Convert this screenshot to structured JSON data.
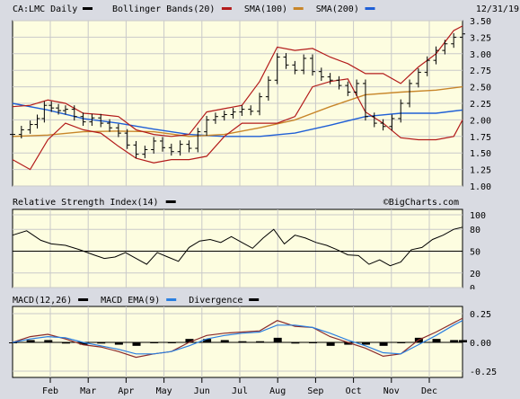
{
  "colors": {
    "background": "#d9dbe2",
    "plot_bg": "#fdfde0",
    "price": "#000000",
    "bollinger": "#b31b1b",
    "sma100": "#c8862a",
    "sma200": "#1f5fd6",
    "rsi": "#000000",
    "macd": "#000000",
    "macd_ema": "#2a7fe0",
    "divergence": "#000000",
    "signal": "#8b2b2b",
    "grid": "#c9c9c9"
  },
  "chart_data": [
    {
      "type": "line",
      "panel": "price",
      "header": {
        "symbol": "CA:LMC Daily",
        "date": "12/31/19",
        "legend": [
          {
            "label": "Bollinger Bands(20)",
            "color": "#b31b1b"
          },
          {
            "label": "SMA(100)",
            "color": "#c8862a"
          },
          {
            "label": "SMA(200)",
            "color": "#1f5fd6"
          }
        ]
      },
      "x_labels": [
        "Feb",
        "Mar",
        "Apr",
        "May",
        "Jun",
        "Jul",
        "Aug",
        "Sep",
        "Oct",
        "Nov",
        "Dec"
      ],
      "y_ticks": [
        "3.50",
        "3.25",
        "3.00",
        "2.75",
        "2.50",
        "2.25",
        "2.00",
        "1.75",
        "1.50",
        "1.25",
        "1.00"
      ],
      "ylim": [
        1.0,
        3.5
      ],
      "grid": true,
      "watermark": "©BigCharts.com",
      "series": [
        {
          "name": "CA:LMC Daily",
          "style": "ohlc",
          "x": [
            0,
            5,
            10,
            14,
            18,
            22,
            26,
            30,
            35,
            40,
            45,
            50,
            55,
            60,
            65,
            70,
            75,
            80,
            85,
            90,
            95,
            100,
            105,
            110,
            115,
            120,
            125,
            130,
            135,
            140,
            145,
            150,
            155,
            160,
            165,
            170,
            175,
            180,
            185,
            190,
            195,
            200,
            205,
            210,
            215,
            220,
            225,
            230,
            235,
            240,
            245,
            250,
            255
          ],
          "values": [
            1.78,
            1.85,
            1.93,
            2.02,
            2.22,
            2.18,
            2.14,
            2.16,
            2.05,
            1.97,
            2.03,
            1.95,
            1.88,
            1.8,
            1.62,
            1.48,
            1.55,
            1.68,
            1.58,
            1.52,
            1.63,
            1.57,
            1.82,
            2.0,
            2.05,
            2.08,
            2.12,
            2.16,
            2.13,
            2.35,
            2.6,
            2.95,
            2.83,
            2.75,
            2.93,
            2.73,
            2.65,
            2.6,
            2.52,
            2.42,
            2.55,
            2.05,
            1.95,
            1.9,
            2.02,
            2.25,
            2.55,
            2.72,
            2.9,
            3.05,
            3.15,
            3.25,
            3.3
          ]
        },
        {
          "name": "Bollinger Bands(20) upper",
          "x": [
            0,
            10,
            20,
            30,
            40,
            50,
            60,
            70,
            80,
            90,
            100,
            110,
            120,
            130,
            140,
            150,
            160,
            170,
            180,
            190,
            200,
            210,
            220,
            230,
            240,
            250,
            255
          ],
          "values": [
            2.2,
            2.22,
            2.3,
            2.25,
            2.1,
            2.08,
            2.05,
            1.85,
            1.78,
            1.75,
            1.78,
            2.12,
            2.17,
            2.22,
            2.58,
            3.1,
            3.05,
            3.08,
            2.95,
            2.85,
            2.7,
            2.7,
            2.55,
            2.8,
            3.0,
            3.35,
            3.42
          ]
        },
        {
          "name": "Bollinger Bands(20) lower",
          "x": [
            0,
            10,
            20,
            30,
            40,
            50,
            60,
            70,
            80,
            90,
            100,
            110,
            120,
            130,
            140,
            150,
            160,
            170,
            180,
            190,
            200,
            210,
            220,
            230,
            240,
            250,
            255
          ],
          "values": [
            1.4,
            1.25,
            1.7,
            1.95,
            1.85,
            1.8,
            1.6,
            1.42,
            1.35,
            1.4,
            1.4,
            1.45,
            1.75,
            1.95,
            1.95,
            1.95,
            2.05,
            2.5,
            2.58,
            2.62,
            2.12,
            1.95,
            1.73,
            1.7,
            1.7,
            1.75,
            2.0
          ]
        },
        {
          "name": "SMA(100)",
          "x": [
            0,
            20,
            40,
            60,
            80,
            100,
            120,
            140,
            160,
            180,
            200,
            220,
            240,
            255
          ],
          "values": [
            1.75,
            1.77,
            1.82,
            1.83,
            1.82,
            1.75,
            1.78,
            1.88,
            2.0,
            2.2,
            2.38,
            2.42,
            2.45,
            2.5
          ]
        },
        {
          "name": "SMA(200)",
          "x": [
            0,
            20,
            40,
            60,
            80,
            100,
            120,
            140,
            160,
            180,
            200,
            220,
            240,
            255
          ],
          "values": [
            2.25,
            2.15,
            2.02,
            1.95,
            1.86,
            1.78,
            1.75,
            1.75,
            1.8,
            1.92,
            2.05,
            2.1,
            2.1,
            2.15
          ]
        }
      ]
    },
    {
      "type": "line",
      "panel": "rsi",
      "header": {
        "legend": [
          {
            "label": "Relative Strength Index(14)",
            "color": "#000000"
          }
        ]
      },
      "watermark": "©BigCharts.com",
      "y_ticks": [
        "100",
        "80",
        "50",
        "20",
        "0"
      ],
      "ylim": [
        0,
        100
      ],
      "reference_line": 50,
      "grid": true,
      "series": [
        {
          "name": "Relative Strength Index(14)",
          "x": [
            0,
            8,
            16,
            22,
            30,
            38,
            46,
            52,
            58,
            64,
            70,
            76,
            82,
            88,
            94,
            100,
            106,
            112,
            118,
            124,
            130,
            136,
            142,
            148,
            154,
            160,
            166,
            172,
            178,
            184,
            190,
            196,
            202,
            208,
            214,
            220,
            226,
            232,
            238,
            244,
            250,
            255
          ],
          "values": [
            72,
            78,
            65,
            60,
            58,
            52,
            45,
            40,
            42,
            48,
            40,
            32,
            48,
            42,
            36,
            55,
            64,
            66,
            62,
            70,
            62,
            54,
            68,
            80,
            60,
            72,
            68,
            62,
            58,
            52,
            45,
            44,
            32,
            38,
            30,
            35,
            52,
            55,
            66,
            72,
            80,
            83
          ]
        }
      ]
    },
    {
      "type": "line",
      "panel": "macd",
      "header": {
        "legend": [
          {
            "label": "MACD(12,26)",
            "color": "#000000"
          },
          {
            "label": "MACD EMA(9)",
            "color": "#2a7fe0"
          },
          {
            "label": "Divergence",
            "color": "#000000"
          }
        ]
      },
      "y_ticks": [
        "0.25",
        "0.00",
        "-0.25"
      ],
      "ylim": [
        -0.25,
        0.25
      ],
      "grid": true,
      "series": [
        {
          "name": "MACD(12,26)",
          "x": [
            0,
            10,
            20,
            30,
            40,
            50,
            60,
            70,
            80,
            90,
            100,
            110,
            120,
            130,
            140,
            150,
            160,
            170,
            180,
            190,
            200,
            210,
            220,
            230,
            240,
            250,
            255
          ],
          "values": [
            0.0,
            0.05,
            0.07,
            0.03,
            -0.02,
            -0.04,
            -0.08,
            -0.13,
            -0.1,
            -0.08,
            0.0,
            0.06,
            0.08,
            0.09,
            0.1,
            0.19,
            0.14,
            0.13,
            0.05,
            0.0,
            -0.05,
            -0.12,
            -0.1,
            0.02,
            0.09,
            0.17,
            0.21
          ]
        },
        {
          "name": "MACD EMA(9)",
          "x": [
            0,
            10,
            20,
            30,
            40,
            50,
            60,
            70,
            80,
            90,
            100,
            110,
            120,
            130,
            140,
            150,
            160,
            170,
            180,
            190,
            200,
            210,
            220,
            230,
            240,
            250,
            255
          ],
          "values": [
            0.0,
            0.03,
            0.05,
            0.04,
            0.0,
            -0.03,
            -0.06,
            -0.1,
            -0.1,
            -0.08,
            -0.03,
            0.03,
            0.06,
            0.08,
            0.09,
            0.15,
            0.15,
            0.13,
            0.08,
            0.02,
            -0.03,
            -0.09,
            -0.1,
            -0.02,
            0.06,
            0.15,
            0.19
          ]
        },
        {
          "name": "Divergence",
          "style": "histogram",
          "x": [
            0,
            10,
            20,
            30,
            40,
            50,
            60,
            70,
            80,
            90,
            100,
            110,
            120,
            130,
            140,
            150,
            160,
            170,
            180,
            190,
            200,
            210,
            220,
            230,
            240,
            250,
            255
          ],
          "values": [
            0.0,
            0.02,
            0.02,
            -0.01,
            -0.02,
            -0.01,
            -0.02,
            -0.03,
            0.0,
            0.0,
            0.03,
            0.03,
            0.02,
            0.01,
            0.01,
            0.04,
            -0.01,
            0.0,
            -0.03,
            -0.02,
            -0.02,
            -0.03,
            0.0,
            0.04,
            0.03,
            0.02,
            0.02
          ]
        }
      ]
    }
  ]
}
